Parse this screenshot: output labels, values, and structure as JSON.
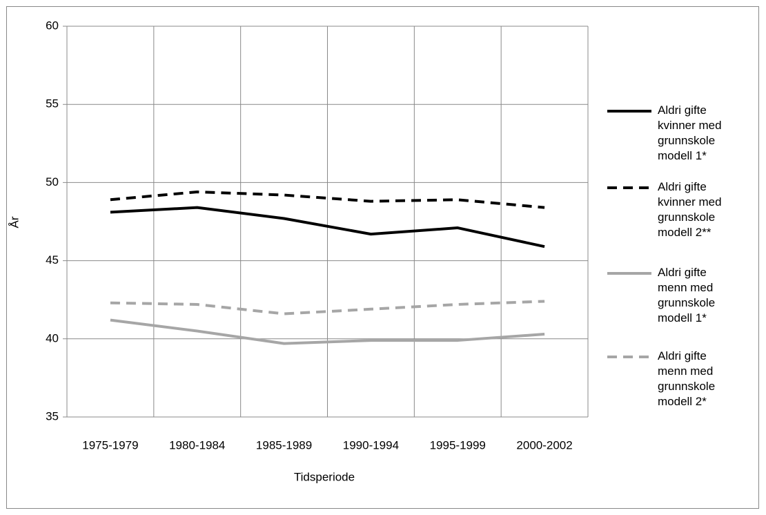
{
  "chart_data": {
    "type": "line",
    "x_label": "Tidsperiode",
    "y_label": "År",
    "categories": [
      "1975-1979",
      "1980-1984",
      "1985-1989",
      "1990-1994",
      "1995-1999",
      "2000-2002"
    ],
    "series": [
      {
        "name": "Aldri gifte kvinner med grunnskole modell 1*",
        "color": "#000000",
        "dash": "solid",
        "values": [
          48.1,
          48.4,
          47.7,
          46.7,
          47.1,
          45.9
        ]
      },
      {
        "name": "Aldri gifte kvinner med grunnskole modell 2**",
        "color": "#000000",
        "dash": "dashed",
        "values": [
          48.9,
          49.4,
          49.2,
          48.8,
          48.9,
          48.4
        ]
      },
      {
        "name": "Aldri gifte menn med grunnskole modell 1*",
        "color": "#a6a6a6",
        "dash": "solid",
        "values": [
          41.2,
          40.5,
          39.7,
          39.9,
          39.9,
          40.3
        ]
      },
      {
        "name": "Aldri gifte menn med grunnskole modell 2*",
        "color": "#a6a6a6",
        "dash": "dashed",
        "values": [
          42.3,
          42.2,
          41.6,
          41.9,
          42.2,
          42.4
        ]
      }
    ],
    "ylim": [
      35,
      60
    ],
    "yticks": [
      35,
      40,
      45,
      50,
      55,
      60
    ],
    "grid": true,
    "legend": "right"
  }
}
